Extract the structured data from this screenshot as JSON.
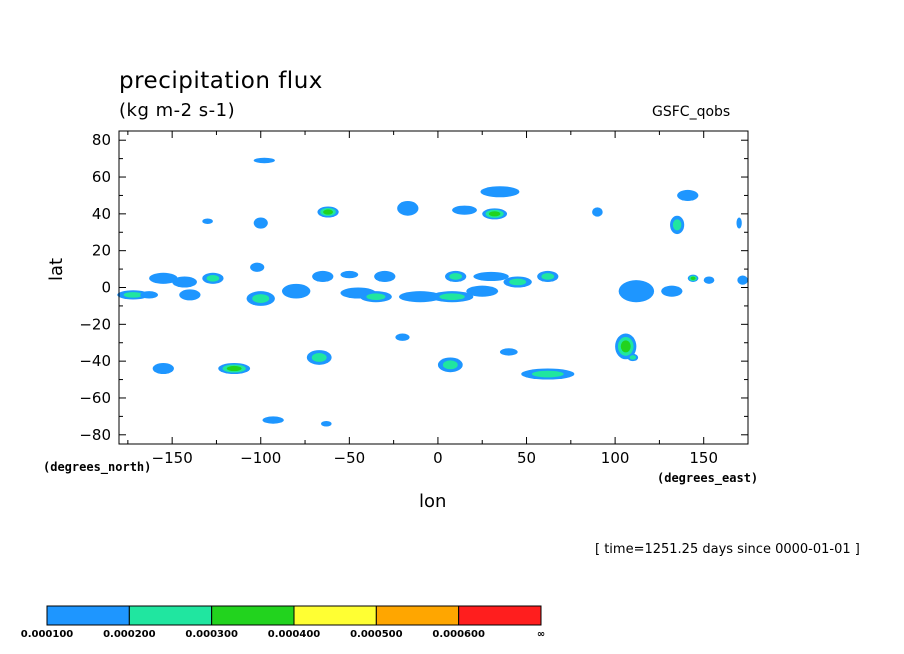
{
  "header": {
    "title": "precipitation flux",
    "units": "(kg m-2 s-1)",
    "source": "GSFC_qobs"
  },
  "axes": {
    "ylabel": "lat",
    "xlabel": "lon",
    "y_units": "(degrees_north)",
    "x_units": "(degrees_east)"
  },
  "footer": {
    "time_info": "[ time=1251.25 days since 0000-01-01 ]"
  },
  "colors": {
    "levels": [
      "#1e96ff",
      "#20e6a0",
      "#22d31e",
      "#ffff33",
      "#ffa600",
      "#ff1e1e"
    ]
  },
  "chart_data": {
    "type": "heatmap",
    "variable": "precipitation flux",
    "units": "(kg m-2 s-1)",
    "xlabel": "lon",
    "ylabel": "lat",
    "xlim": [
      -180,
      175
    ],
    "ylim": [
      -85,
      85
    ],
    "xticks": [
      -150,
      -100,
      -50,
      0,
      50,
      100,
      150
    ],
    "yticks": [
      80,
      60,
      40,
      20,
      0,
      -20,
      -40,
      -60,
      -80
    ],
    "colorbar": {
      "thresholds": [
        "0.000100",
        "0.000200",
        "0.000300",
        "0.000400",
        "0.000500",
        "0.000600",
        "∞"
      ],
      "colors": [
        "#1e96ff",
        "#20e6a0",
        "#22d31e",
        "#ffff33",
        "#ffa600",
        "#ff1e1e"
      ]
    },
    "regions": [
      {
        "lon": -172,
        "lat": -4,
        "dlon": 9,
        "dlat": 2.5,
        "level": 1,
        "peak": 2
      },
      {
        "lon": -163,
        "lat": -4,
        "dlon": 5,
        "dlat": 2,
        "level": 1,
        "peak": 1
      },
      {
        "lon": -155,
        "lat": 5,
        "dlon": 8,
        "dlat": 3,
        "level": 1,
        "peak": 1
      },
      {
        "lon": -143,
        "lat": 3,
        "dlon": 7,
        "dlat": 3,
        "level": 1,
        "peak": 1
      },
      {
        "lon": -140,
        "lat": -4,
        "dlon": 6,
        "dlat": 3,
        "level": 1,
        "peak": 1
      },
      {
        "lon": -127,
        "lat": 5,
        "dlon": 6,
        "dlat": 3,
        "level": 1,
        "peak": 2
      },
      {
        "lon": -100,
        "lat": -6,
        "dlon": 8,
        "dlat": 4,
        "level": 1,
        "peak": 2
      },
      {
        "lon": -102,
        "lat": 11,
        "dlon": 4,
        "dlat": 2.5,
        "level": 1,
        "peak": 1
      },
      {
        "lon": -80,
        "lat": -2,
        "dlon": 8,
        "dlat": 4,
        "level": 1,
        "peak": 1
      },
      {
        "lon": -65,
        "lat": 6,
        "dlon": 6,
        "dlat": 3,
        "level": 1,
        "peak": 1
      },
      {
        "lon": -50,
        "lat": 7,
        "dlon": 5,
        "dlat": 2,
        "level": 1,
        "peak": 1
      },
      {
        "lon": -45,
        "lat": -3,
        "dlon": 10,
        "dlat": 3,
        "level": 1,
        "peak": 1
      },
      {
        "lon": -35,
        "lat": -5,
        "dlon": 9,
        "dlat": 3,
        "level": 1,
        "peak": 2
      },
      {
        "lon": -30,
        "lat": 6,
        "dlon": 6,
        "dlat": 3,
        "level": 1,
        "peak": 1
      },
      {
        "lon": -10,
        "lat": -5,
        "dlon": 12,
        "dlat": 3,
        "level": 1,
        "peak": 1
      },
      {
        "lon": 8,
        "lat": -5,
        "dlon": 12,
        "dlat": 3,
        "level": 1,
        "peak": 2
      },
      {
        "lon": 10,
        "lat": 6,
        "dlon": 6,
        "dlat": 3,
        "level": 1,
        "peak": 2
      },
      {
        "lon": 25,
        "lat": -2,
        "dlon": 9,
        "dlat": 3,
        "level": 1,
        "peak": 1
      },
      {
        "lon": 30,
        "lat": 6,
        "dlon": 10,
        "dlat": 2.5,
        "level": 1,
        "peak": 1
      },
      {
        "lon": 45,
        "lat": 3,
        "dlon": 8,
        "dlat": 3,
        "level": 1,
        "peak": 2
      },
      {
        "lon": 62,
        "lat": 6,
        "dlon": 6,
        "dlat": 3,
        "level": 1,
        "peak": 2
      },
      {
        "lon": 112,
        "lat": -2,
        "dlon": 10,
        "dlat": 6,
        "level": 1,
        "peak": 1
      },
      {
        "lon": 132,
        "lat": -2,
        "dlon": 6,
        "dlat": 3,
        "level": 1,
        "peak": 1
      },
      {
        "lon": 144,
        "lat": 5,
        "dlon": 3,
        "dlat": 2,
        "level": 1,
        "peak": 3
      },
      {
        "lon": 153,
        "lat": 4,
        "dlon": 3,
        "dlat": 2,
        "level": 1,
        "peak": 1
      },
      {
        "lon": 172,
        "lat": 4,
        "dlon": 3,
        "dlat": 2.5,
        "level": 1,
        "peak": 1
      },
      {
        "lon": -98,
        "lat": 69,
        "dlon": 6,
        "dlat": 1.5,
        "level": 1,
        "peak": 1
      },
      {
        "lon": -130,
        "lat": 36,
        "dlon": 3,
        "dlat": 1.5,
        "level": 1,
        "peak": 1
      },
      {
        "lon": -100,
        "lat": 35,
        "dlon": 4,
        "dlat": 3,
        "level": 1,
        "peak": 1
      },
      {
        "lon": -62,
        "lat": 41,
        "dlon": 6,
        "dlat": 3,
        "level": 1,
        "peak": 3
      },
      {
        "lon": -17,
        "lat": 43,
        "dlon": 6,
        "dlat": 4,
        "level": 1,
        "peak": 1
      },
      {
        "lon": 15,
        "lat": 42,
        "dlon": 7,
        "dlat": 2.5,
        "level": 1,
        "peak": 1
      },
      {
        "lon": 32,
        "lat": 40,
        "dlon": 7,
        "dlat": 3,
        "level": 1,
        "peak": 3
      },
      {
        "lon": 35,
        "lat": 52,
        "dlon": 11,
        "dlat": 3,
        "level": 1,
        "peak": 1
      },
      {
        "lon": 90,
        "lat": 41,
        "dlon": 3,
        "dlat": 2.5,
        "level": 1,
        "peak": 1
      },
      {
        "lon": 141,
        "lat": 50,
        "dlon": 6,
        "dlat": 3,
        "level": 1,
        "peak": 1
      },
      {
        "lon": 135,
        "lat": 34,
        "dlon": 4,
        "dlat": 5,
        "level": 1,
        "peak": 2
      },
      {
        "lon": 170,
        "lat": 35,
        "dlon": 1.5,
        "dlat": 3,
        "level": 1,
        "peak": 1
      },
      {
        "lon": -155,
        "lat": -44,
        "dlon": 6,
        "dlat": 3,
        "level": 1,
        "peak": 1
      },
      {
        "lon": -115,
        "lat": -44,
        "dlon": 9,
        "dlat": 3,
        "level": 1,
        "peak": 3
      },
      {
        "lon": -67,
        "lat": -38,
        "dlon": 7,
        "dlat": 4,
        "level": 1,
        "peak": 2
      },
      {
        "lon": -20,
        "lat": -27,
        "dlon": 4,
        "dlat": 2,
        "level": 1,
        "peak": 1
      },
      {
        "lon": 7,
        "lat": -42,
        "dlon": 7,
        "dlat": 4,
        "level": 1,
        "peak": 2
      },
      {
        "lon": 40,
        "lat": -35,
        "dlon": 5,
        "dlat": 2,
        "level": 1,
        "peak": 1
      },
      {
        "lon": 62,
        "lat": -47,
        "dlon": 15,
        "dlat": 3,
        "level": 1,
        "peak": 2
      },
      {
        "lon": 106,
        "lat": -32,
        "dlon": 6,
        "dlat": 7,
        "level": 1,
        "peak": 3
      },
      {
        "lon": 110,
        "lat": -38,
        "dlon": 3,
        "dlat": 2,
        "level": 1,
        "peak": 2
      },
      {
        "lon": -93,
        "lat": -72,
        "dlon": 6,
        "dlat": 2,
        "level": 1,
        "peak": 1
      },
      {
        "lon": -63,
        "lat": -74,
        "dlon": 3,
        "dlat": 1.5,
        "level": 1,
        "peak": 1
      }
    ]
  }
}
